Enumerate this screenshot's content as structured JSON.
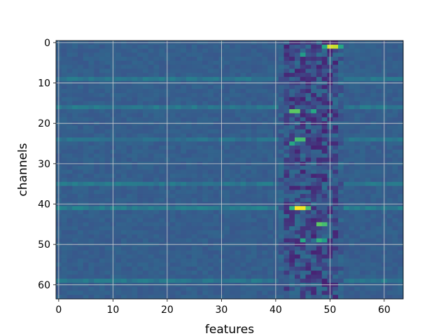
{
  "chart_data": {
    "type": "heatmap",
    "title": "",
    "xlabel": "features",
    "ylabel": "channels",
    "rows": 64,
    "cols": 64,
    "xlim": [
      -0.5,
      63.5
    ],
    "ylim": [
      63.5,
      -0.5
    ],
    "x_ticks": [
      0,
      10,
      20,
      30,
      40,
      50,
      60
    ],
    "y_ticks": [
      0,
      10,
      20,
      30,
      40,
      50,
      60
    ],
    "grid": true,
    "colormap": "viridis",
    "value_range": [
      0,
      1
    ],
    "background_value": 0.3,
    "high_activation_cells": [
      {
        "row": 1,
        "col": 50,
        "value": 0.95
      },
      {
        "row": 1,
        "col": 51,
        "value": 0.92
      },
      {
        "row": 1,
        "col": 49,
        "value": 0.6
      },
      {
        "row": 1,
        "col": 52,
        "value": 0.6
      },
      {
        "row": 3,
        "col": 45,
        "value": 0.55
      },
      {
        "row": 17,
        "col": 43,
        "value": 0.75
      },
      {
        "row": 17,
        "col": 44,
        "value": 0.75
      },
      {
        "row": 17,
        "col": 47,
        "value": 0.6
      },
      {
        "row": 24,
        "col": 44,
        "value": 0.7
      },
      {
        "row": 24,
        "col": 45,
        "value": 0.7
      },
      {
        "row": 25,
        "col": 43,
        "value": 0.6
      },
      {
        "row": 41,
        "col": 44,
        "value": 1.0
      },
      {
        "row": 41,
        "col": 45,
        "value": 0.98
      },
      {
        "row": 41,
        "col": 46,
        "value": 0.7
      },
      {
        "row": 41,
        "col": 43,
        "value": 0.65
      },
      {
        "row": 45,
        "col": 48,
        "value": 0.75
      },
      {
        "row": 45,
        "col": 49,
        "value": 0.7
      },
      {
        "row": 49,
        "col": 45,
        "value": 0.6
      },
      {
        "row": 49,
        "col": 48,
        "value": 0.65
      },
      {
        "row": 49,
        "col": 49,
        "value": 0.55
      }
    ],
    "low_activation_columns": [
      41,
      42,
      43,
      44,
      45,
      46,
      47,
      48,
      49,
      50,
      51,
      52
    ],
    "low_activation_value": 0.12,
    "moderate_rows": [
      {
        "row": 9,
        "value": 0.4
      },
      {
        "row": 16,
        "value": 0.4
      },
      {
        "row": 24,
        "value": 0.38
      },
      {
        "row": 35,
        "value": 0.4
      },
      {
        "row": 41,
        "value": 0.42
      },
      {
        "row": 59,
        "value": 0.4
      }
    ]
  }
}
